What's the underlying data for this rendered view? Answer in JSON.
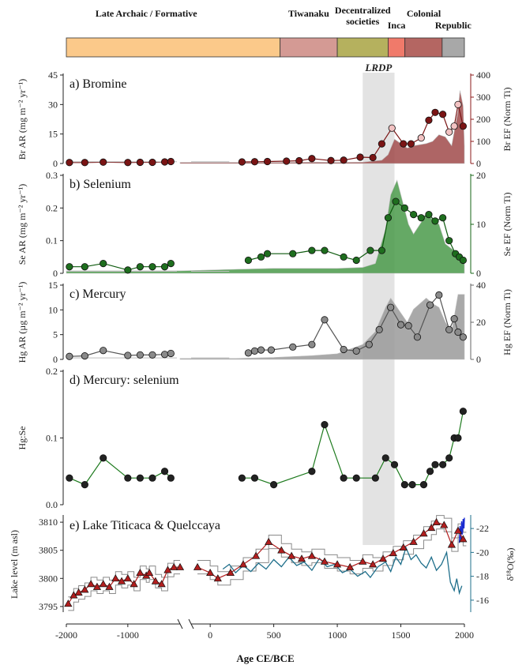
{
  "figure": {
    "eras": [
      {
        "label": "Late Archaic / Formative",
        "start": -2000,
        "end": 550,
        "color": "#fbc98a"
      },
      {
        "label": "Tiwanaku",
        "start": 550,
        "end": 1000,
        "color": "#d49a94"
      },
      {
        "label": "Decentralized societies",
        "start": 1000,
        "end": 1400,
        "color": "#b5b15e"
      },
      {
        "label": "Inca",
        "start": 1400,
        "end": 1532,
        "color": "#f07a6a"
      },
      {
        "label": "Colonial",
        "start": 1532,
        "end": 1825,
        "color": "#b46662"
      },
      {
        "label": "Republic",
        "start": 1825,
        "end": 2000,
        "color": "#a8a8a8"
      }
    ],
    "lrdp": {
      "label": "LRDP",
      "start": 1200,
      "end": 1450
    },
    "xaxis_label": "Age CE/BCE",
    "x_ticks": [
      -2000,
      -1000,
      0,
      500,
      1000,
      1500,
      2000
    ],
    "x_tick_labels": [
      "-2000",
      "-1000",
      "0",
      "500",
      "1000",
      "1500",
      "2000"
    ]
  },
  "chart_data": [
    {
      "type": "line",
      "panel_label": "a) Bromine",
      "ylabel": "Br AR (mg m⁻² yr⁻¹)",
      "ylim": [
        0,
        45
      ],
      "yticks": [
        0,
        15,
        30,
        45
      ],
      "y2label": "Br EF (Norm Ti)",
      "y2lim": [
        0,
        400
      ],
      "y2ticks": [
        0,
        100,
        200,
        300,
        400
      ],
      "line_color": "#7a1414",
      "area_color": "#a04a4a",
      "axis2_color": "#8b1a1a",
      "x": [
        -1950,
        -1700,
        -1400,
        -1000,
        -800,
        -600,
        -400,
        -300,
        250,
        350,
        450,
        600,
        700,
        800,
        950,
        1050,
        1180,
        1280,
        1350,
        1430,
        1520,
        1580,
        1660,
        1720,
        1770,
        1830,
        1880,
        1920,
        1950,
        1990
      ],
      "values": [
        0.5,
        0.5,
        0.7,
        0.5,
        0.6,
        0.6,
        0.8,
        1.0,
        0.8,
        0.9,
        1.0,
        1.2,
        1.4,
        2.5,
        1.5,
        1.7,
        3.2,
        3.0,
        10.0,
        18.0,
        10.0,
        10.0,
        13.0,
        22.0,
        26.0,
        25.0,
        16.0,
        19.0,
        30.0,
        19.0
      ],
      "area_x": [
        -150,
        200,
        400,
        600,
        800,
        1000,
        1200,
        1350,
        1400,
        1450,
        1500,
        1550,
        1600,
        1700,
        1750,
        1800,
        1850,
        1900,
        1950,
        1965,
        1990,
        2000
      ],
      "area_y": [
        5,
        5,
        5,
        5,
        6,
        5,
        6,
        15,
        40,
        110,
        90,
        70,
        80,
        90,
        100,
        130,
        120,
        80,
        240,
        330,
        260,
        80
      ]
    },
    {
      "type": "line",
      "panel_label": "b) Selenium",
      "ylabel": "Se AR (mg m⁻² yr⁻¹)",
      "ylim": [
        0,
        0.3
      ],
      "yticks": [
        0,
        0.1,
        0.2,
        0.3
      ],
      "y2label": "Se EF (Norm Ti)",
      "y2lim": [
        0,
        20
      ],
      "y2ticks": [
        0,
        10,
        20
      ],
      "line_color": "#0d5a0d",
      "area_color": "#4a9a4a",
      "axis2_color": "#146414",
      "x": [
        -1950,
        -1700,
        -1400,
        -1000,
        -800,
        -600,
        -400,
        -300,
        300,
        400,
        450,
        650,
        800,
        900,
        1050,
        1150,
        1260,
        1350,
        1400,
        1460,
        1530,
        1600,
        1660,
        1720,
        1770,
        1830,
        1880,
        1930,
        1960,
        1990
      ],
      "values": [
        0.02,
        0.02,
        0.03,
        0.01,
        0.02,
        0.02,
        0.02,
        0.03,
        0.04,
        0.05,
        0.06,
        0.06,
        0.07,
        0.07,
        0.05,
        0.04,
        0.07,
        0.07,
        0.17,
        0.22,
        0.2,
        0.18,
        0.17,
        0.18,
        0.16,
        0.17,
        0.1,
        0.06,
        0.05,
        0.04
      ],
      "area_x": [
        -2000,
        -500,
        -150,
        200,
        500,
        800,
        1000,
        1200,
        1300,
        1380,
        1420,
        1470,
        1520,
        1560,
        1600,
        1650,
        1700,
        1750,
        1800,
        1850,
        1900,
        1950,
        2000
      ],
      "area_y": [
        0.5,
        0.5,
        0.5,
        0.8,
        1,
        1,
        1,
        1.2,
        2,
        9,
        16,
        19,
        14,
        10,
        8,
        10,
        12,
        11,
        10,
        6,
        5,
        4,
        3
      ]
    },
    {
      "type": "line",
      "panel_label": "c) Mercury",
      "ylabel": "Hg AR (µg m⁻² yr⁻¹)",
      "ylim": [
        0,
        15
      ],
      "yticks": [
        0,
        5,
        10,
        15
      ],
      "y2label": "Hg EF (Norm Ti)",
      "y2lim": [
        0,
        40
      ],
      "y2ticks": [
        0,
        20,
        40
      ],
      "line_color": "#555555",
      "area_color": "#9a9a9a",
      "axis2_color": "#666666",
      "x": [
        -1950,
        -1700,
        -1400,
        -1000,
        -800,
        -600,
        -400,
        -300,
        300,
        350,
        400,
        480,
        650,
        800,
        900,
        1050,
        1150,
        1250,
        1330,
        1420,
        1500,
        1560,
        1630,
        1730,
        1800,
        1880,
        1920,
        1950,
        1990
      ],
      "values": [
        0.6,
        0.7,
        1.8,
        0.8,
        0.9,
        0.9,
        1.0,
        1.2,
        1.3,
        1.7,
        1.9,
        1.9,
        2.5,
        3.0,
        8.0,
        2.0,
        1.7,
        3.0,
        6.0,
        10.5,
        7.0,
        6.8,
        4.5,
        11.0,
        13.0,
        6.0,
        8.2,
        5.5,
        4.5
      ],
      "area_x": [
        -150,
        200,
        500,
        800,
        1000,
        1200,
        1300,
        1380,
        1420,
        1460,
        1500,
        1550,
        1600,
        1700,
        1750,
        1800,
        1850,
        1900,
        1950,
        2000
      ],
      "area_y": [
        0.5,
        0.5,
        1,
        2,
        3,
        8,
        15,
        28,
        33,
        29,
        25,
        20,
        27,
        33,
        30,
        28,
        20,
        15,
        35,
        35
      ]
    },
    {
      "type": "line",
      "panel_label": "d) Mercury: selenium",
      "ylabel": "Hg:Se",
      "ylim": [
        0,
        0.2
      ],
      "yticks": [
        0,
        0.1,
        0.2
      ],
      "ytick_labels": [
        "0.0",
        "0.1",
        "0.2"
      ],
      "line_color": "#1d7a1d",
      "marker_fill": "#222222",
      "x": [
        -1950,
        -1700,
        -1400,
        -1000,
        -800,
        -600,
        -400,
        -300,
        250,
        350,
        500,
        800,
        900,
        1050,
        1150,
        1300,
        1380,
        1450,
        1530,
        1590,
        1680,
        1730,
        1770,
        1830,
        1880,
        1920,
        1950,
        1990
      ],
      "values": [
        0.04,
        0.03,
        0.07,
        0.04,
        0.04,
        0.04,
        0.05,
        0.04,
        0.04,
        0.04,
        0.03,
        0.05,
        0.12,
        0.04,
        0.04,
        0.04,
        0.07,
        0.06,
        0.03,
        0.03,
        0.03,
        0.05,
        0.06,
        0.06,
        0.07,
        0.1,
        0.1,
        0.14
      ]
    },
    {
      "type": "line",
      "panel_label": "e) Lake Titicaca & Quelccaya",
      "ylabel": "Lake level (m asl)",
      "ylim": [
        3794,
        3811
      ],
      "yticks": [
        3795,
        3800,
        3805,
        3810
      ],
      "y2label": "δ¹⁸O(‰)",
      "y2lim": [
        -15,
        -23
      ],
      "y2ticks": [
        -22,
        -20,
        -18,
        -16
      ],
      "lake_color": "#b21e1e",
      "band_color": "#8a8a8a",
      "iso_color": "#1f6f8b",
      "iso_recent_color": "#1a2bd0",
      "lake_x": [
        -1970,
        -1880,
        -1800,
        -1700,
        -1600,
        -1500,
        -1400,
        -1300,
        -1200,
        -1100,
        -1000,
        -900,
        -800,
        -700,
        -650,
        -550,
        -450,
        -350,
        -250,
        -150,
        -100,
        0,
        60,
        160,
        260,
        360,
        460,
        560,
        640,
        720,
        800,
        900,
        1000,
        1100,
        1200,
        1280,
        1360,
        1440,
        1520,
        1600,
        1680,
        1740,
        1780,
        1840,
        1900,
        1950,
        1990
      ],
      "lake_y": [
        3795.5,
        3797,
        3797.5,
        3798,
        3799,
        3798.5,
        3799,
        3798.5,
        3800,
        3799.5,
        3800,
        3799,
        3801,
        3800.5,
        3801,
        3799.5,
        3799,
        3801.5,
        3802,
        3802,
        3802,
        3801,
        3800,
        3801,
        3802.5,
        3804,
        3806.5,
        3805,
        3804,
        3803.5,
        3804,
        3803,
        3802.5,
        3802,
        3803,
        3802.5,
        3803.5,
        3804.5,
        3805.5,
        3806.5,
        3808,
        3809,
        3810,
        3809.5,
        3806,
        3808.5,
        3807
      ],
      "iso_x": [
        100,
        150,
        200,
        260,
        320,
        380,
        440,
        500,
        560,
        620,
        680,
        740,
        800,
        860,
        920,
        980,
        1040,
        1100,
        1160,
        1220,
        1260,
        1320,
        1380,
        1420,
        1460,
        1500,
        1540,
        1580,
        1620,
        1660,
        1700,
        1740,
        1780,
        1820,
        1860,
        1890,
        1920,
        1940,
        1960,
        1980
      ],
      "iso_y": [
        -18.6,
        -19.0,
        -18.3,
        -18.9,
        -18.4,
        -19.1,
        -18.6,
        -19.4,
        -18.8,
        -19.6,
        -18.9,
        -19.2,
        -18.5,
        -19.5,
        -18.8,
        -19.0,
        -18.3,
        -18.6,
        -18.0,
        -18.4,
        -17.9,
        -18.8,
        -19.2,
        -18.4,
        -19.6,
        -19.0,
        -20.4,
        -19.4,
        -19.8,
        -19.1,
        -18.7,
        -19.6,
        -18.5,
        -19.0,
        -20.0,
        -17.5,
        -16.8,
        -17.8,
        -16.6,
        -17.2
      ],
      "iso_recent_x": [
        1960,
        1966,
        1972,
        1978,
        1984,
        1990,
        1996,
        2000
      ],
      "iso_recent_y": [
        -20.8,
        -22.2,
        -21.0,
        -22.6,
        -21.5,
        -22.8,
        -22.0,
        -22.9
      ]
    }
  ]
}
